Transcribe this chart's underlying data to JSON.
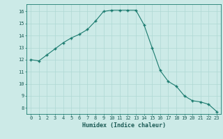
{
  "x": [
    0,
    1,
    2,
    3,
    4,
    5,
    6,
    7,
    8,
    9,
    10,
    11,
    12,
    13,
    14,
    15,
    16,
    17,
    18,
    19,
    20,
    21,
    22,
    23
  ],
  "y": [
    12.0,
    11.9,
    12.4,
    12.9,
    13.4,
    13.8,
    14.1,
    14.5,
    15.2,
    16.0,
    16.1,
    16.1,
    16.1,
    16.1,
    14.9,
    13.0,
    11.1,
    10.2,
    9.8,
    9.0,
    8.6,
    8.5,
    8.3,
    7.7
  ],
  "xlabel": "Humidex (Indice chaleur)",
  "xlim": [
    -0.5,
    23.5
  ],
  "ylim": [
    7.5,
    16.6
  ],
  "yticks": [
    8,
    9,
    10,
    11,
    12,
    13,
    14,
    15,
    16
  ],
  "xticks": [
    0,
    1,
    2,
    3,
    4,
    5,
    6,
    7,
    8,
    9,
    10,
    11,
    12,
    13,
    14,
    15,
    16,
    17,
    18,
    19,
    20,
    21,
    22,
    23
  ],
  "line_color": "#1a7a6e",
  "marker": "+",
  "bg_color": "#cceae7",
  "grid_color": "#aed8d4",
  "tick_label_color": "#1a5a54",
  "xlabel_color": "#1a5a54"
}
